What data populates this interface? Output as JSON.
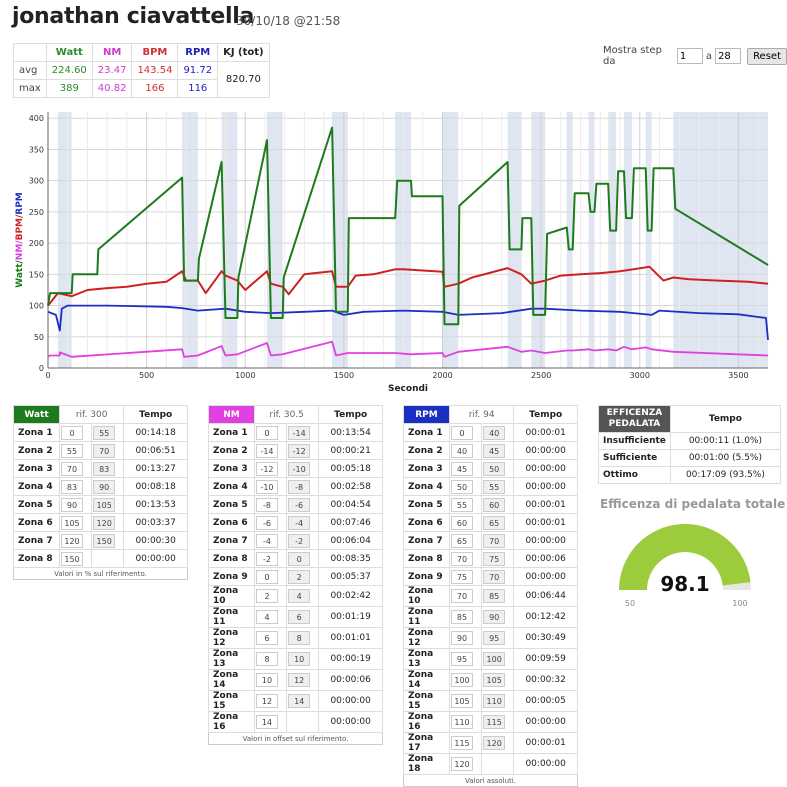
{
  "header": {
    "title": "jonathan ciavattella",
    "date": "30/10/18 @21:58"
  },
  "stats": {
    "cols": [
      "Watt",
      "NM",
      "BPM",
      "RPM",
      "KJ (tot)"
    ],
    "rows": [
      {
        "label": "avg",
        "values": [
          "224.60",
          "23.47",
          "143.54",
          "91.72"
        ]
      },
      {
        "label": "max",
        "values": [
          "389",
          "40.82",
          "166",
          "116"
        ]
      }
    ],
    "kj": "820.70"
  },
  "steps": {
    "label_from": "Mostra step da",
    "from": "1",
    "label_to": "a",
    "to": "28",
    "reset": "Reset"
  },
  "colors": {
    "watt": "#1e7a1e",
    "nm": "#e040e0",
    "bpm": "#d02020",
    "rpm": "#1a30c0",
    "band": "#dfe6f1",
    "gauge": "#9ccc3c"
  },
  "chart_data": {
    "type": "line",
    "xlabel": "Secondi",
    "ylabel": "Watt/NM/BPM/RPM",
    "xlim": [
      0,
      3650
    ],
    "ylim": [
      0,
      410
    ],
    "xticks": [
      0,
      500,
      1000,
      1500,
      2000,
      2500,
      3000,
      3500
    ],
    "yticks": [
      0,
      50,
      100,
      150,
      200,
      250,
      300,
      350,
      400
    ],
    "bands": [
      [
        50,
        120
      ],
      [
        680,
        760
      ],
      [
        880,
        960
      ],
      [
        1110,
        1190
      ],
      [
        1440,
        1520
      ],
      [
        1760,
        1840
      ],
      [
        2000,
        2080
      ],
      [
        2330,
        2400
      ],
      [
        2450,
        2520
      ],
      [
        2630,
        2660
      ],
      [
        2740,
        2770
      ],
      [
        2840,
        2880
      ],
      [
        2920,
        2960
      ],
      [
        3030,
        3060
      ],
      [
        3170,
        3650
      ]
    ],
    "series": [
      {
        "name": "Watt",
        "x": [
          0,
          10,
          120,
          125,
          250,
          255,
          680,
          690,
          760,
          765,
          880,
          900,
          960,
          965,
          1110,
          1130,
          1190,
          1195,
          1440,
          1460,
          1520,
          1525,
          1760,
          1770,
          1840,
          1845,
          2000,
          2010,
          2080,
          2085,
          2330,
          2340,
          2400,
          2405,
          2450,
          2460,
          2520,
          2530,
          2630,
          2640,
          2660,
          2670,
          2740,
          2750,
          2770,
          2780,
          2840,
          2850,
          2880,
          2890,
          2920,
          2930,
          2960,
          2970,
          3030,
          3040,
          3060,
          3070,
          3170,
          3180,
          3650
        ],
        "y": [
          100,
          120,
          120,
          150,
          150,
          190,
          305,
          140,
          140,
          175,
          330,
          80,
          80,
          145,
          365,
          80,
          80,
          145,
          385,
          90,
          90,
          240,
          240,
          300,
          300,
          275,
          275,
          70,
          70,
          260,
          330,
          190,
          190,
          240,
          240,
          85,
          85,
          215,
          225,
          190,
          190,
          280,
          280,
          250,
          250,
          295,
          295,
          220,
          220,
          315,
          315,
          240,
          240,
          320,
          320,
          220,
          220,
          320,
          320,
          255,
          165
        ]
      },
      {
        "name": "NM",
        "x": [
          0,
          10,
          60,
          60,
          120,
          680,
          690,
          760,
          880,
          900,
          960,
          1110,
          1130,
          1190,
          1440,
          1460,
          1520,
          1760,
          1840,
          2000,
          2010,
          2080,
          2330,
          2400,
          2450,
          2520,
          2630,
          2660,
          2740,
          2770,
          2840,
          2880,
          2920,
          2960,
          3030,
          3060,
          3170,
          3650
        ],
        "y": [
          18,
          20,
          20,
          25,
          18,
          30,
          18,
          20,
          35,
          20,
          22,
          40,
          20,
          22,
          42,
          20,
          24,
          24,
          22,
          24,
          18,
          26,
          34,
          26,
          28,
          24,
          28,
          28,
          30,
          28,
          30,
          28,
          34,
          30,
          33,
          30,
          26,
          20
        ]
      },
      {
        "name": "BPM",
        "x": [
          0,
          50,
          120,
          200,
          300,
          400,
          500,
          600,
          680,
          700,
          760,
          800,
          880,
          900,
          960,
          1000,
          1110,
          1130,
          1190,
          1220,
          1300,
          1440,
          1460,
          1520,
          1560,
          1650,
          1760,
          1800,
          2000,
          2010,
          2080,
          2150,
          2330,
          2400,
          2450,
          2520,
          2600,
          2700,
          2800,
          2900,
          3050,
          3120,
          3170,
          3250,
          3400,
          3550,
          3650
        ],
        "y": [
          100,
          120,
          115,
          125,
          128,
          130,
          135,
          138,
          155,
          140,
          140,
          120,
          155,
          148,
          140,
          125,
          155,
          135,
          130,
          118,
          150,
          155,
          130,
          130,
          148,
          150,
          158,
          158,
          154,
          130,
          135,
          145,
          160,
          150,
          135,
          140,
          148,
          150,
          152,
          155,
          162,
          140,
          145,
          142,
          140,
          138,
          135
        ]
      },
      {
        "name": "RPM",
        "x": [
          0,
          40,
          60,
          70,
          100,
          300,
          600,
          680,
          760,
          900,
          1000,
          1130,
          1300,
          1440,
          1500,
          1600,
          1800,
          2000,
          2080,
          2300,
          2450,
          2520,
          2700,
          2900,
          3060,
          3100,
          3300,
          3500,
          3640,
          3650
        ],
        "y": [
          90,
          85,
          60,
          95,
          100,
          100,
          98,
          96,
          92,
          95,
          90,
          88,
          90,
          92,
          85,
          90,
          92,
          90,
          85,
          88,
          95,
          95,
          92,
          90,
          85,
          92,
          88,
          86,
          80,
          45
        ]
      }
    ]
  },
  "zones_watt": {
    "title": "Watt",
    "rif": "rif. 300",
    "tempo": "Tempo",
    "note": "Valori in % sul riferimento.",
    "rows": [
      [
        "Zona 1",
        "0",
        "55",
        "00:14:18"
      ],
      [
        "Zona 2",
        "55",
        "70",
        "00:06:51"
      ],
      [
        "Zona 3",
        "70",
        "83",
        "00:13:27"
      ],
      [
        "Zona 4",
        "83",
        "90",
        "00:08:18"
      ],
      [
        "Zona 5",
        "90",
        "105",
        "00:13:53"
      ],
      [
        "Zona 6",
        "105",
        "120",
        "00:03:37"
      ],
      [
        "Zona 7",
        "120",
        "150",
        "00:00:30"
      ],
      [
        "Zona 8",
        "150",
        "",
        "00:00:00"
      ]
    ]
  },
  "zones_nm": {
    "title": "NM",
    "rif": "rif. 30.5",
    "tempo": "Tempo",
    "note": "Valori in offset sul riferimento.",
    "rows": [
      [
        "Zona 1",
        "0",
        "-14",
        "00:13:54"
      ],
      [
        "Zona 2",
        "-14",
        "-12",
        "00:00:21"
      ],
      [
        "Zona 3",
        "-12",
        "-10",
        "00:05:18"
      ],
      [
        "Zona 4",
        "-10",
        "-8",
        "00:02:58"
      ],
      [
        "Zona 5",
        "-8",
        "-6",
        "00:04:54"
      ],
      [
        "Zona 6",
        "-6",
        "-4",
        "00:07:46"
      ],
      [
        "Zona 7",
        "-4",
        "-2",
        "00:06:04"
      ],
      [
        "Zona 8",
        "-2",
        "0",
        "00:08:35"
      ],
      [
        "Zona 9",
        "0",
        "2",
        "00:05:37"
      ],
      [
        "Zona 10",
        "2",
        "4",
        "00:02:42"
      ],
      [
        "Zona 11",
        "4",
        "6",
        "00:01:19"
      ],
      [
        "Zona 12",
        "6",
        "8",
        "00:01:01"
      ],
      [
        "Zona 13",
        "8",
        "10",
        "00:00:19"
      ],
      [
        "Zona 14",
        "10",
        "12",
        "00:00:06"
      ],
      [
        "Zona 15",
        "12",
        "14",
        "00:00:00"
      ],
      [
        "Zona 16",
        "14",
        "",
        "00:00:00"
      ]
    ]
  },
  "zones_rpm": {
    "title": "RPM",
    "rif": "rif. 94",
    "tempo": "Tempo",
    "note": "Valori assoluti.",
    "rows": [
      [
        "Zona 1",
        "0",
        "40",
        "00:00:01"
      ],
      [
        "Zona 2",
        "40",
        "45",
        "00:00:00"
      ],
      [
        "Zona 3",
        "45",
        "50",
        "00:00:00"
      ],
      [
        "Zona 4",
        "50",
        "55",
        "00:00:00"
      ],
      [
        "Zona 5",
        "55",
        "60",
        "00:00:01"
      ],
      [
        "Zona 6",
        "60",
        "65",
        "00:00:01"
      ],
      [
        "Zona 7",
        "65",
        "70",
        "00:00:00"
      ],
      [
        "Zona 8",
        "70",
        "75",
        "00:00:06"
      ],
      [
        "Zona 9",
        "75",
        "70",
        "00:00:00"
      ],
      [
        "Zona 10",
        "70",
        "85",
        "00:06:44"
      ],
      [
        "Zona 11",
        "85",
        "90",
        "00:12:42"
      ],
      [
        "Zona 12",
        "90",
        "95",
        "00:30:49"
      ],
      [
        "Zona 13",
        "95",
        "100",
        "00:09:59"
      ],
      [
        "Zona 14",
        "100",
        "105",
        "00:00:32"
      ],
      [
        "Zona 15",
        "105",
        "110",
        "00:00:05"
      ],
      [
        "Zona 16",
        "110",
        "115",
        "00:00:00"
      ],
      [
        "Zona 17",
        "115",
        "120",
        "00:00:01"
      ],
      [
        "Zona 18",
        "120",
        "",
        "00:00:00"
      ]
    ]
  },
  "efficiency": {
    "header": "EFFICENZA PEDALATA",
    "tempo": "Tempo",
    "rows": [
      [
        "Insufficiente",
        "00:00:11 (1.0%)"
      ],
      [
        "Sufficiente",
        "00:01:00 (5.5%)"
      ],
      [
        "Ottimo",
        "00:17:09 (93.5%)"
      ]
    ],
    "title": "Efficenza di pedalata totale",
    "value": 98.1,
    "value_label": "98.1",
    "min": "50",
    "max": "100"
  }
}
